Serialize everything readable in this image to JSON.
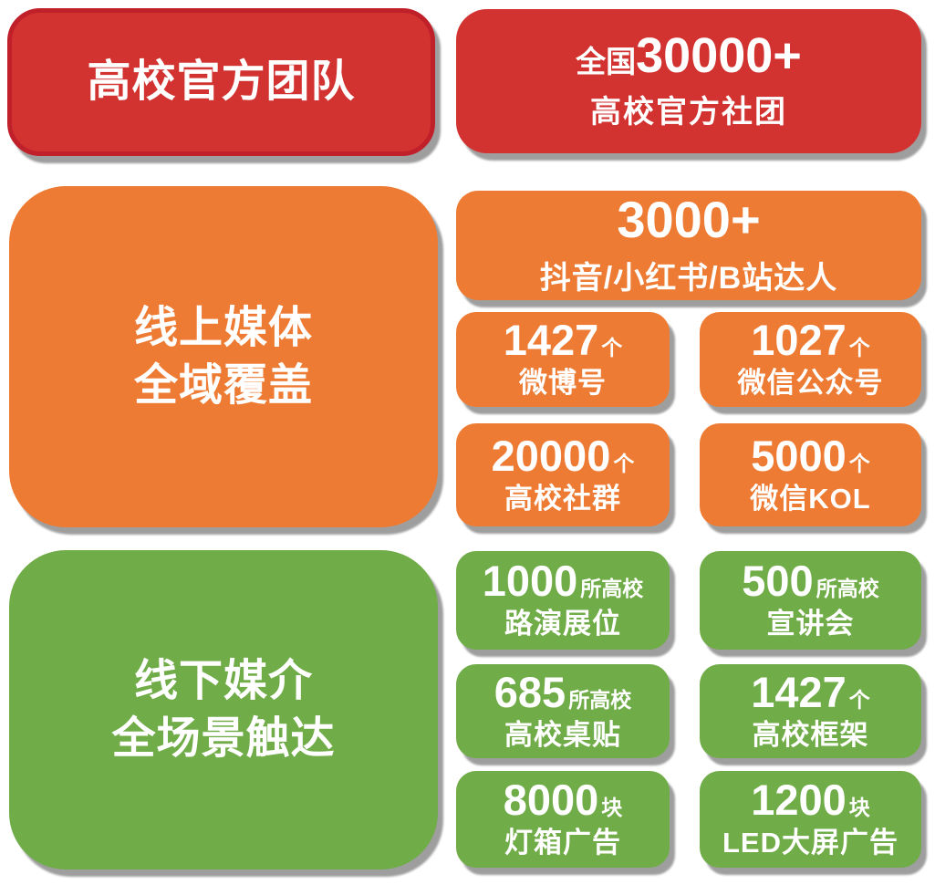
{
  "palette": {
    "red": "#d23230",
    "red_border": "#c0202a",
    "orange": "#ee7b33",
    "green": "#70ac48",
    "text": "#ffffff",
    "background": "#ffffff"
  },
  "left_panels": {
    "official": {
      "line1": "高校官方团队"
    },
    "online": {
      "line1": "线上媒体",
      "line2": "全域覆盖"
    },
    "offline": {
      "line1": "线下媒介",
      "line2": "全场景触达"
    }
  },
  "cards": {
    "national_clubs": {
      "prefix": "全国",
      "number": "30000+",
      "label": "高校官方社团"
    },
    "influencers": {
      "number": "3000+",
      "label": "抖音/小红书/B站达人"
    },
    "weibo": {
      "number": "1427",
      "unit": "个",
      "label": "微博号"
    },
    "wechat_official": {
      "number": "1027",
      "unit": "个",
      "label": "微信公众号"
    },
    "campus_groups": {
      "number": "20000",
      "unit": "个",
      "label": "高校社群"
    },
    "wechat_kol": {
      "number": "5000",
      "unit": "个",
      "label": "微信KOL"
    },
    "roadshow": {
      "number": "1000",
      "unit": "所高校",
      "label": "路演展位"
    },
    "seminar": {
      "number": "500",
      "unit": "所高校",
      "label": "宣讲会"
    },
    "desk_sticker": {
      "number": "685",
      "unit": "所高校",
      "label": "高校桌贴"
    },
    "campus_frame": {
      "number": "1427",
      "unit": "个",
      "label": "高校框架"
    },
    "lightbox_ads": {
      "number": "8000",
      "unit": "块",
      "label": "灯箱广告"
    },
    "led_ads": {
      "number": "1200",
      "unit": "块",
      "label": "LED大屏广告"
    }
  }
}
